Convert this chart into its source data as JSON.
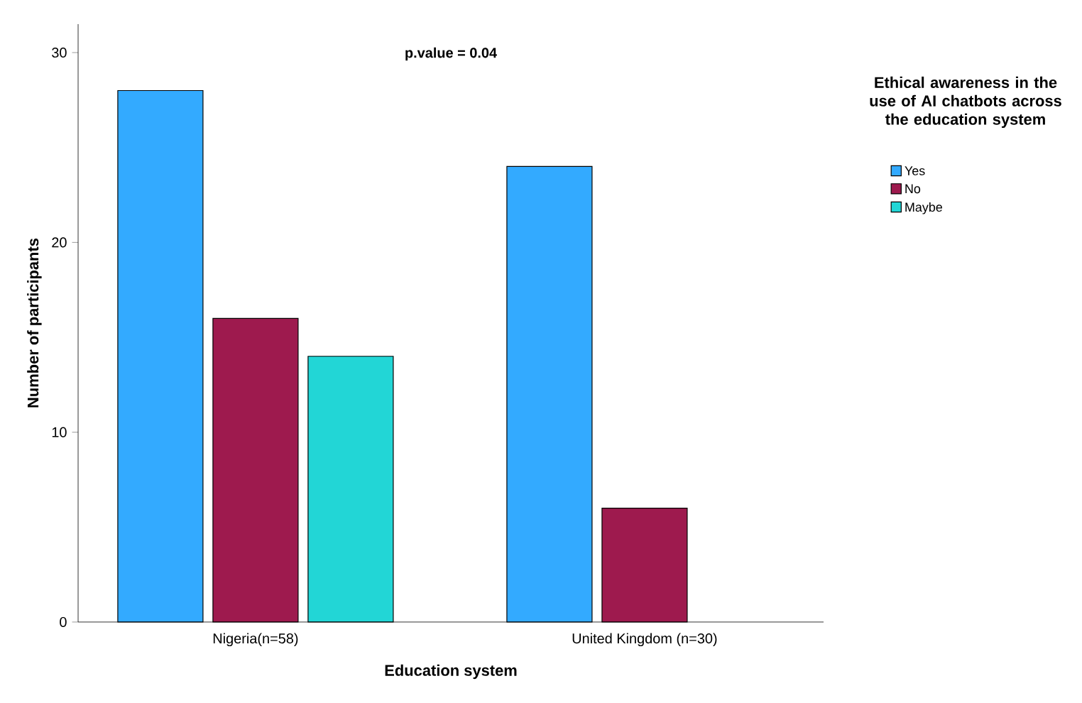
{
  "chart_data": {
    "type": "bar",
    "xlabel": "Education system",
    "ylabel": "Number of participants",
    "legend_title": "Ethical awareness in the use of AI chatbots across the education system",
    "categories": [
      "Nigeria(n=58)",
      "United Kingdom (n=30)"
    ],
    "series": [
      {
        "name": "Yes",
        "color": "#33aaff",
        "values": [
          28,
          24
        ]
      },
      {
        "name": "No",
        "color": "#9e1a4e",
        "values": [
          16,
          6
        ]
      },
      {
        "name": "Maybe",
        "color": "#22d6d6",
        "values": [
          14,
          null
        ]
      }
    ],
    "ylim": [
      0,
      31.5
    ],
    "yticks": [
      0,
      10,
      20,
      30
    ],
    "grid": false,
    "legend": "right",
    "annotations": [
      "p.value = 0.04"
    ]
  }
}
